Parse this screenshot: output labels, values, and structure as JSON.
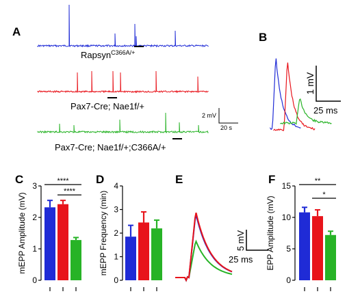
{
  "panel_letters": [
    "A",
    "B",
    "C",
    "D",
    "E",
    "F"
  ],
  "colors": {
    "blue": "#1f2bd6",
    "red": "#e8141b",
    "green": "#27b326",
    "black": "#000000"
  },
  "panel_a": {
    "traces": [
      {
        "name": "Rapsyn",
        "label": "Rapsyn",
        "sup": "C366A/+",
        "color": "#1f2bd6"
      },
      {
        "name": "Pax7-Cre; Nae1f/+",
        "label": "Pax7-Cre; Nae1f/+",
        "sup": "",
        "color": "#e8141b"
      },
      {
        "name": "Pax7-Cre; Nae1f/+;C366A/+",
        "label": "Pax7-Cre; Nae1f/+;C366A/+",
        "sup": "",
        "color": "#27b326"
      }
    ],
    "scale_v": "2 mV",
    "scale_t": "20 s"
  },
  "panel_b": {
    "scale_v": "1 mV",
    "scale_t": "25 ms"
  },
  "panel_e": {
    "scale_v": "5 mV",
    "scale_t": "25 ms"
  },
  "chart_data": [
    {
      "panel": "C",
      "type": "bar",
      "ylabel": "mEPP Amplitude (mV)",
      "ylim": [
        0,
        3
      ],
      "yticks": [
        0,
        1,
        2,
        3
      ],
      "series_colors": [
        "#1f2bd6",
        "#e8141b",
        "#27b326"
      ],
      "values": [
        2.32,
        2.42,
        1.28
      ],
      "errors": [
        0.22,
        0.12,
        0.08
      ],
      "significance": [
        {
          "from": 0,
          "to": 2,
          "label": "****"
        },
        {
          "from": 1,
          "to": 2,
          "label": "****"
        }
      ]
    },
    {
      "panel": "D",
      "type": "bar",
      "ylabel": "mEPP Frequency (min)",
      "ylim": [
        0,
        4
      ],
      "yticks": [
        0,
        1,
        2,
        3,
        4
      ],
      "series_colors": [
        "#1f2bd6",
        "#e8141b",
        "#27b326"
      ],
      "values": [
        1.85,
        2.45,
        2.2
      ],
      "errors": [
        0.48,
        0.45,
        0.35
      ],
      "significance": []
    },
    {
      "panel": "F",
      "type": "bar",
      "ylabel": "EPP Amplitude (mV)",
      "ylim": [
        0,
        15
      ],
      "yticks": [
        0,
        5,
        10,
        15
      ],
      "series_colors": [
        "#1f2bd6",
        "#e8141b",
        "#27b326"
      ],
      "values": [
        10.8,
        10.2,
        7.2
      ],
      "errors": [
        0.8,
        1.0,
        0.6
      ],
      "significance": [
        {
          "from": 0,
          "to": 2,
          "label": "**"
        },
        {
          "from": 1,
          "to": 2,
          "label": "*"
        }
      ]
    }
  ]
}
